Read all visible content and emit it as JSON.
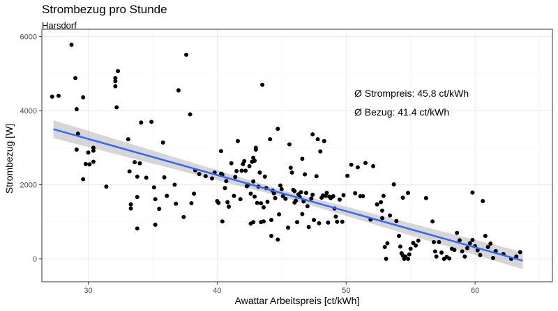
{
  "chart_data": {
    "type": "scatter",
    "title": "Strombezug pro Stunde",
    "subtitle": "Harsdorf",
    "xlabel": "Awattar Arbeitspreis [ct/kWh]",
    "ylabel": "Strombezug [W]",
    "xlim": [
      26.4,
      66.0
    ],
    "ylim": [
      -620,
      6200
    ],
    "x_ticks": [
      30,
      40,
      50,
      60
    ],
    "y_ticks": [
      0,
      2000,
      4000,
      6000
    ],
    "x_tick_labels": [
      "30",
      "40",
      "50",
      "60"
    ],
    "y_tick_labels": [
      "0",
      "2000",
      "4000",
      "6000"
    ],
    "grid": true,
    "colors": {
      "points": "#000000",
      "trend_line": "#3366ff",
      "confidence_band": "#999999",
      "grid_major": "#ebebeb",
      "grid_minor": "#f4f4f4",
      "panel_border": "#333333"
    },
    "annotations": [
      "Ø Strompreis: 45.8 ct/kWh",
      "Ø Bezug: 41.4 ct/kWh"
    ],
    "trend": {
      "method": "lm",
      "x": [
        27.3,
        63.7
      ],
      "y": [
        3500,
        -50
      ],
      "band": [
        [
          27.3,
          3260,
          3740
        ],
        [
          45.5,
          1630,
          1810
        ],
        [
          63.7,
          -280,
          180
        ]
      ]
    },
    "points": [
      [
        27.2,
        4380
      ],
      [
        27.7,
        4400
      ],
      [
        28.7,
        5780
      ],
      [
        29.0,
        4880
      ],
      [
        29.1,
        4040
      ],
      [
        29.6,
        4360
      ],
      [
        29.2,
        3380
      ],
      [
        29.1,
        2950
      ],
      [
        29.8,
        2560
      ],
      [
        29.6,
        2150
      ],
      [
        30.0,
        2870
      ],
      [
        30.1,
        2550
      ],
      [
        30.4,
        2920
      ],
      [
        30.4,
        3000
      ],
      [
        30.4,
        2620
      ],
      [
        31.4,
        1950
      ],
      [
        32.1,
        4660
      ],
      [
        32.1,
        4800
      ],
      [
        32.1,
        4880
      ],
      [
        32.3,
        5070
      ],
      [
        32.2,
        4090
      ],
      [
        33.1,
        3230
      ],
      [
        33.2,
        2360
      ],
      [
        33.3,
        1470
      ],
      [
        33.3,
        1360
      ],
      [
        33.6,
        2610
      ],
      [
        33.8,
        2220
      ],
      [
        33.8,
        1670
      ],
      [
        33.8,
        820
      ],
      [
        34.0,
        2580
      ],
      [
        34.1,
        3680
      ],
      [
        34.5,
        2190
      ],
      [
        34.9,
        3700
      ],
      [
        35.1,
        1930
      ],
      [
        35.2,
        1610
      ],
      [
        35.2,
        920
      ],
      [
        35.5,
        1350
      ],
      [
        35.8,
        3140
      ],
      [
        35.9,
        2200
      ],
      [
        36.1,
        1700
      ],
      [
        36.7,
        2000
      ],
      [
        36.8,
        1490
      ],
      [
        37.0,
        4550
      ],
      [
        37.4,
        1130
      ],
      [
        37.6,
        5510
      ],
      [
        37.9,
        3900
      ],
      [
        38.0,
        1500
      ],
      [
        38.2,
        1760
      ],
      [
        38.3,
        2390
      ],
      [
        38.6,
        2290
      ],
      [
        39.1,
        2230
      ],
      [
        39.6,
        2170
      ],
      [
        39.8,
        2330
      ],
      [
        40.0,
        1560
      ],
      [
        40.1,
        1510
      ],
      [
        40.3,
        2300
      ],
      [
        40.3,
        2910
      ],
      [
        40.4,
        2270
      ],
      [
        40.4,
        1010
      ],
      [
        40.6,
        1910
      ],
      [
        40.7,
        2100
      ],
      [
        40.8,
        1530
      ],
      [
        40.9,
        1410
      ],
      [
        41.1,
        2580
      ],
      [
        41.3,
        1700
      ],
      [
        41.4,
        2210
      ],
      [
        41.5,
        2370
      ],
      [
        41.8,
        1610
      ],
      [
        41.6,
        3180
      ],
      [
        41.9,
        2380
      ],
      [
        42.0,
        2560
      ],
      [
        42.1,
        2640
      ],
      [
        42.2,
        2380
      ],
      [
        42.3,
        1960
      ],
      [
        42.4,
        2000
      ],
      [
        42.5,
        2500
      ],
      [
        42.6,
        1760
      ],
      [
        42.7,
        2620
      ],
      [
        42.8,
        2730
      ],
      [
        42.8,
        2090
      ],
      [
        42.9,
        2650
      ],
      [
        42.9,
        1680
      ],
      [
        43.0,
        2950
      ],
      [
        43.0,
        3000
      ],
      [
        43.1,
        1510
      ],
      [
        43.2,
        1950
      ],
      [
        43.3,
        2330
      ],
      [
        43.4,
        1500
      ],
      [
        43.5,
        4700
      ],
      [
        43.6,
        1390
      ],
      [
        43.6,
        1010
      ],
      [
        43.7,
        2220
      ],
      [
        43.8,
        1910
      ],
      [
        43.9,
        1540
      ],
      [
        43.4,
        990
      ],
      [
        42.8,
        990
      ],
      [
        42.6,
        950
      ],
      [
        44.1,
        3230
      ],
      [
        44.2,
        1050
      ],
      [
        44.2,
        620
      ],
      [
        44.3,
        1840
      ],
      [
        44.4,
        1770
      ],
      [
        44.5,
        1640
      ],
      [
        44.7,
        3510
      ],
      [
        44.7,
        520
      ],
      [
        44.8,
        1200
      ],
      [
        44.9,
        1980
      ],
      [
        45.0,
        1880
      ],
      [
        45.1,
        1690
      ],
      [
        45.3,
        1620
      ],
      [
        45.5,
        840
      ],
      [
        45.6,
        3090
      ],
      [
        45.7,
        2460
      ],
      [
        45.8,
        2330
      ],
      [
        45.9,
        1860
      ],
      [
        46.0,
        1830
      ],
      [
        46.1,
        1570
      ],
      [
        46.2,
        990
      ],
      [
        46.0,
        1520
      ],
      [
        46.3,
        1740
      ],
      [
        46.4,
        1670
      ],
      [
        46.5,
        1800
      ],
      [
        46.6,
        2700
      ],
      [
        46.6,
        1210
      ],
      [
        46.7,
        1550
      ],
      [
        46.8,
        2280
      ],
      [
        46.9,
        1780
      ],
      [
        47.0,
        1420
      ],
      [
        47.1,
        860
      ],
      [
        47.3,
        1630
      ],
      [
        47.4,
        3360
      ],
      [
        47.4,
        1730
      ],
      [
        47.5,
        1050
      ],
      [
        47.7,
        2230
      ],
      [
        47.8,
        3230
      ],
      [
        47.9,
        960
      ],
      [
        48.0,
        2900
      ],
      [
        48.1,
        1650
      ],
      [
        48.2,
        1710
      ],
      [
        48.3,
        3180
      ],
      [
        48.4,
        1700
      ],
      [
        48.5,
        1780
      ],
      [
        48.6,
        980
      ],
      [
        48.7,
        1680
      ],
      [
        48.8,
        1640
      ],
      [
        48.9,
        1670
      ],
      [
        49.0,
        1690
      ],
      [
        49.1,
        1360
      ],
      [
        49.2,
        1140
      ],
      [
        49.3,
        1000
      ],
      [
        49.5,
        1600
      ],
      [
        49.7,
        1000
      ],
      [
        49.8,
        1720
      ],
      [
        50.1,
        2240
      ],
      [
        50.4,
        2540
      ],
      [
        50.7,
        1770
      ],
      [
        50.9,
        2470
      ],
      [
        51.1,
        1690
      ],
      [
        51.3,
        1690
      ],
      [
        51.5,
        2590
      ],
      [
        51.9,
        1060
      ],
      [
        52.1,
        2500
      ],
      [
        52.4,
        1470
      ],
      [
        52.7,
        1530
      ],
      [
        52.8,
        1300
      ],
      [
        52.8,
        1100
      ],
      [
        52.9,
        1700
      ],
      [
        53.0,
        320
      ],
      [
        53.1,
        0
      ],
      [
        53.2,
        420
      ],
      [
        53.4,
        1170
      ],
      [
        53.7,
        2010
      ],
      [
        53.9,
        1020
      ],
      [
        54.1,
        620
      ],
      [
        54.2,
        330
      ],
      [
        54.3,
        150
      ],
      [
        54.4,
        90
      ],
      [
        54.5,
        0
      ],
      [
        54.6,
        60
      ],
      [
        54.8,
        0
      ],
      [
        54.9,
        120
      ],
      [
        55.0,
        270
      ],
      [
        55.2,
        430
      ],
      [
        55.4,
        360
      ],
      [
        55.6,
        490
      ],
      [
        54.4,
        1650
      ],
      [
        54.8,
        1780
      ],
      [
        56.2,
        1640
      ],
      [
        56.7,
        1010
      ],
      [
        56.8,
        450
      ],
      [
        56.9,
        200
      ],
      [
        57.0,
        60
      ],
      [
        57.2,
        450
      ],
      [
        57.4,
        170
      ],
      [
        57.6,
        0
      ],
      [
        57.8,
        50
      ],
      [
        58.0,
        10
      ],
      [
        58.2,
        270
      ],
      [
        58.4,
        240
      ],
      [
        58.6,
        700
      ],
      [
        58.8,
        500
      ],
      [
        59.0,
        200
      ],
      [
        59.2,
        60
      ],
      [
        59.4,
        290
      ],
      [
        59.6,
        420
      ],
      [
        59.8,
        510
      ],
      [
        59.8,
        1790
      ],
      [
        60.0,
        340
      ],
      [
        60.2,
        230
      ],
      [
        60.4,
        100
      ],
      [
        60.6,
        1560
      ],
      [
        60.8,
        620
      ],
      [
        61.0,
        320
      ],
      [
        61.2,
        410
      ],
      [
        61.4,
        20
      ],
      [
        61.6,
        210
      ],
      [
        62.2,
        130
      ],
      [
        62.8,
        0
      ],
      [
        63.2,
        60
      ],
      [
        63.5,
        180
      ]
    ]
  }
}
